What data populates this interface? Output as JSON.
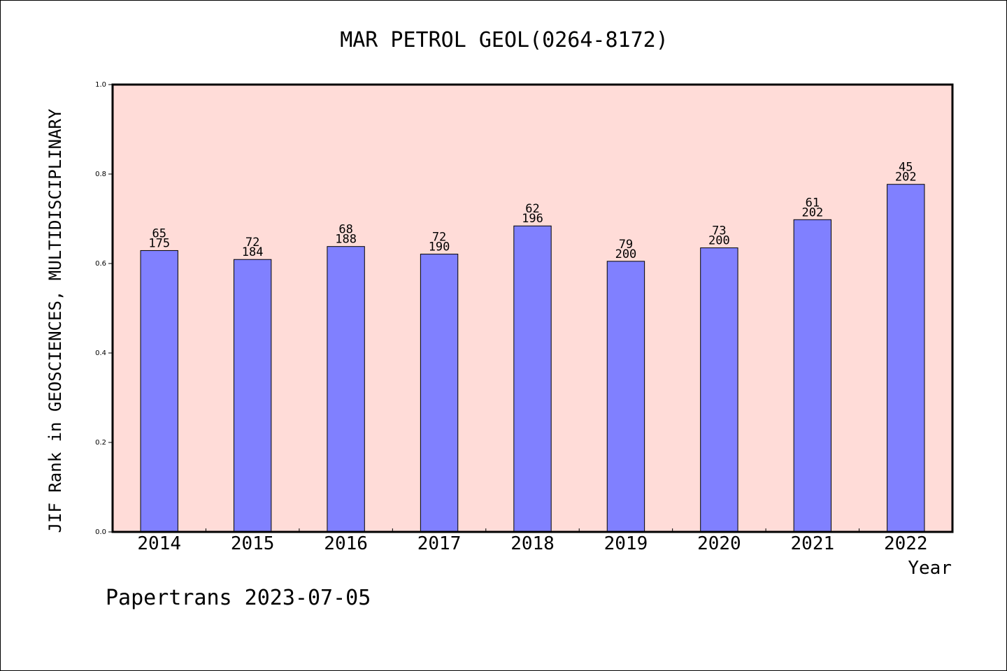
{
  "chart_data": {
    "type": "bar",
    "title": "MAR PETROL GEOL(0264-8172)",
    "xlabel": "Year",
    "ylabel": "JIF Rank in GEOSCIENCES, MULTIDISCIPLINARY",
    "ylim": [
      0,
      1.0
    ],
    "yticks": [
      "0.0",
      "0.2",
      "0.4",
      "0.6",
      "0.8",
      "1.0"
    ],
    "categories": [
      "2014",
      "2015",
      "2016",
      "2017",
      "2018",
      "2019",
      "2020",
      "2021",
      "2022"
    ],
    "values": [
      0.629,
      0.609,
      0.638,
      0.621,
      0.684,
      0.605,
      0.635,
      0.698,
      0.777
    ],
    "rank_labels": [
      "65",
      "72",
      "68",
      "72",
      "62",
      "79",
      "73",
      "61",
      "45"
    ],
    "total_labels": [
      "175",
      "184",
      "188",
      "190",
      "196",
      "200",
      "200",
      "202",
      "202"
    ],
    "bar_color": "#8080ff",
    "plot_background": "#ffdcd8",
    "grid": false,
    "footer": "Papertrans 2023-07-05"
  }
}
